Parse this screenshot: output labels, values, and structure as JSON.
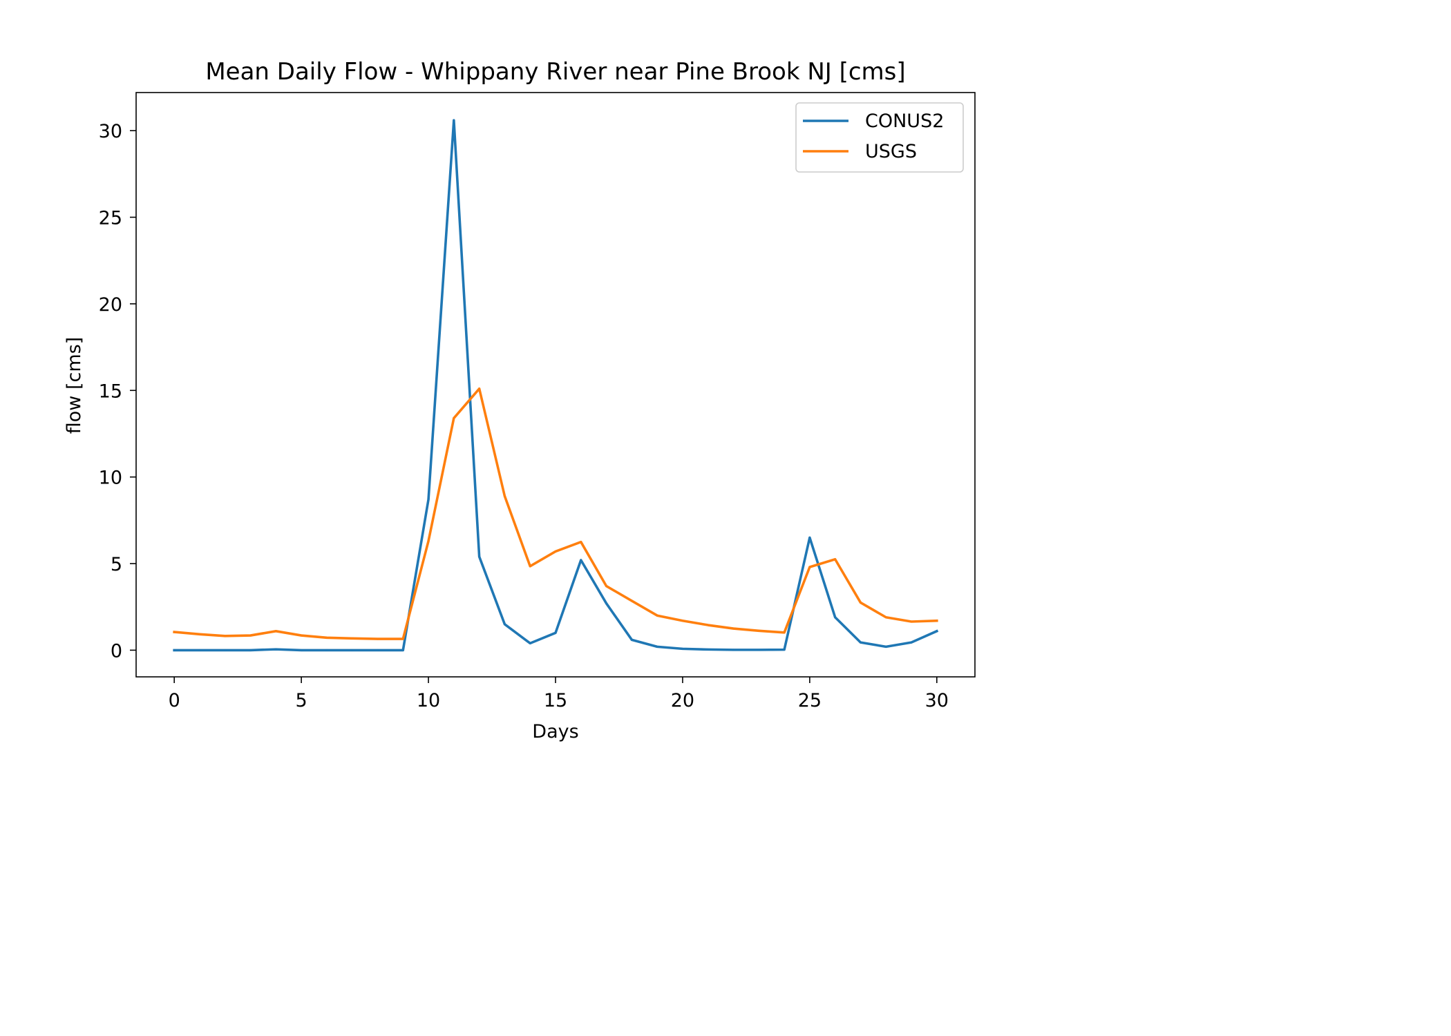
{
  "chart_data": {
    "type": "line",
    "title": "Mean Daily Flow - Whippany River near Pine Brook NJ [cms]",
    "xlabel": "Days",
    "ylabel": "flow [cms]",
    "xlim": [
      -1.5,
      31.5
    ],
    "ylim": [
      -1.54,
      32.2
    ],
    "xticks": [
      0,
      5,
      10,
      15,
      20,
      25,
      30
    ],
    "yticks": [
      0,
      5,
      10,
      15,
      20,
      25,
      30
    ],
    "grid": false,
    "legend_position": "upper right",
    "x": [
      0,
      1,
      2,
      3,
      4,
      5,
      6,
      7,
      8,
      9,
      10,
      11,
      12,
      13,
      14,
      15,
      16,
      17,
      18,
      19,
      20,
      21,
      22,
      23,
      24,
      25,
      26,
      27,
      28,
      29,
      30
    ],
    "series": [
      {
        "name": "CONUS2",
        "color": "#1f77b4",
        "values": [
          0.0,
          0.0,
          0.0,
          0.0,
          0.05,
          0.0,
          0.0,
          0.0,
          0.0,
          0.0,
          8.7,
          30.6,
          5.4,
          1.5,
          0.4,
          1.0,
          5.2,
          2.7,
          0.6,
          0.2,
          0.08,
          0.04,
          0.02,
          0.02,
          0.03,
          6.5,
          1.9,
          0.45,
          0.2,
          0.45,
          1.1
        ]
      },
      {
        "name": "USGS",
        "color": "#ff7f0e",
        "values": [
          1.05,
          0.92,
          0.82,
          0.85,
          1.1,
          0.85,
          0.72,
          0.68,
          0.65,
          0.65,
          6.3,
          13.4,
          15.1,
          8.9,
          4.85,
          5.7,
          6.25,
          3.7,
          2.85,
          2.0,
          1.7,
          1.45,
          1.25,
          1.12,
          1.02,
          4.8,
          5.25,
          2.75,
          1.9,
          1.65,
          1.7
        ]
      }
    ]
  }
}
